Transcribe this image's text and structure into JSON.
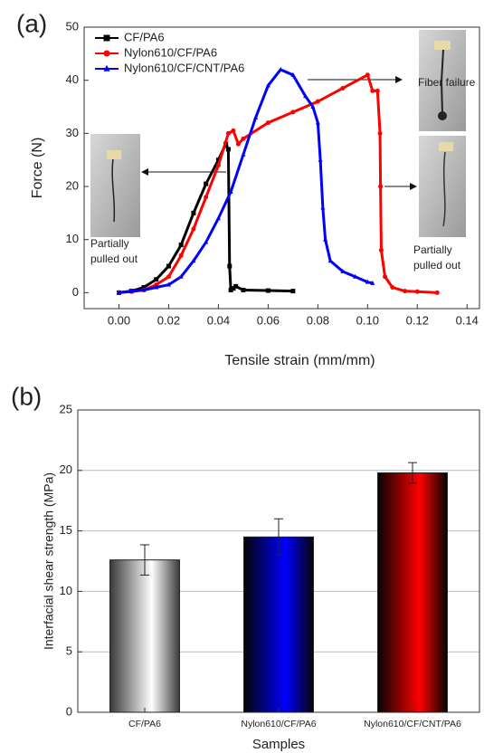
{
  "chart_data": [
    {
      "type": "line",
      "panel_label": "(a)",
      "x_label": "Tensile strain (mm/mm)",
      "y_label": "Force (N)",
      "xlim": [
        -0.014,
        0.145
      ],
      "ylim": [
        -3,
        50
      ],
      "xticks": [
        {
          "value": 0,
          "label": "0.00"
        },
        {
          "value": 0.02,
          "label": "0.02"
        },
        {
          "value": 0.04,
          "label": "0.04"
        },
        {
          "value": 0.06,
          "label": "0.06"
        },
        {
          "value": 0.08,
          "label": "0.08"
        },
        {
          "value": 0.1,
          "label": "0.10"
        },
        {
          "value": 0.12,
          "label": "0.12"
        },
        {
          "value": 0.14,
          "label": "0.14"
        }
      ],
      "yticks": [
        0,
        10,
        20,
        30,
        40,
        50
      ],
      "legend": "upper left",
      "grid": false,
      "series": [
        {
          "name": "CF/PA6",
          "color": "#000000",
          "marker": "square",
          "x": [
            0,
            0.005,
            0.01,
            0.015,
            0.02,
            0.025,
            0.03,
            0.035,
            0.04,
            0.043,
            0.044,
            0.0445,
            0.045,
            0.046,
            0.047,
            0.05,
            0.06,
            0.07
          ],
          "values": [
            0,
            0.3,
            1,
            2.5,
            5,
            9,
            15,
            20.5,
            25,
            28,
            27,
            5,
            0.5,
            0.8,
            1.2,
            0.5,
            0.4,
            0.3
          ]
        },
        {
          "name": "Nylon610/CF/PA6",
          "color": "#ff0000",
          "marker": "circle",
          "x": [
            0,
            0.005,
            0.01,
            0.015,
            0.02,
            0.025,
            0.03,
            0.035,
            0.04,
            0.044,
            0.046,
            0.048,
            0.05,
            0.06,
            0.07,
            0.08,
            0.09,
            0.1,
            0.102,
            0.104,
            0.105,
            0.1052,
            0.1055,
            0.107,
            0.11,
            0.115,
            0.12,
            0.128
          ],
          "values": [
            0,
            0.2,
            0.5,
            1.5,
            3,
            7,
            12,
            18,
            24,
            30,
            30.5,
            28,
            29,
            32,
            34,
            36,
            38.5,
            41,
            38,
            38,
            30,
            20,
            8,
            3,
            1,
            0.3,
            0.2,
            0
          ]
        },
        {
          "name": "Nylon610/CF/CNT/PA6",
          "color": "#0000ff",
          "marker": "triangle",
          "x": [
            0,
            0.005,
            0.01,
            0.015,
            0.02,
            0.025,
            0.03,
            0.035,
            0.04,
            0.045,
            0.05,
            0.055,
            0.06,
            0.065,
            0.07,
            0.075,
            0.078,
            0.08,
            0.081,
            0.082,
            0.083,
            0.085,
            0.09,
            0.095,
            0.1,
            0.102
          ],
          "values": [
            0,
            0.3,
            0.5,
            1,
            1.5,
            3,
            6,
            9.5,
            14,
            19,
            26,
            33,
            39,
            42,
            41,
            37,
            35,
            32,
            25,
            16,
            10,
            6,
            4,
            3,
            2,
            1.8
          ]
        }
      ],
      "annotations": [
        [
          "Fiber failure"
        ],
        [
          "Partially",
          "pulled out"
        ],
        [
          "Partially",
          "pulled out"
        ]
      ]
    },
    {
      "type": "bar",
      "panel_label": "(b)",
      "x_label": "Samples",
      "y_label": "Interfacial shear strength (MPa)",
      "categories": [
        "CF/PA6",
        "Nylon610/CF/PA6",
        "Nylon610/CF/CNT/PA6"
      ],
      "values": [
        12.6,
        14.5,
        19.8
      ],
      "errors": [
        1.25,
        1.5,
        0.85
      ],
      "colors": [
        "#ffffff",
        "#0000ff",
        "#ff0000"
      ],
      "ylim": [
        0,
        25
      ],
      "yticks": [
        0,
        5,
        10,
        15,
        20,
        25
      ],
      "grid": true
    }
  ]
}
